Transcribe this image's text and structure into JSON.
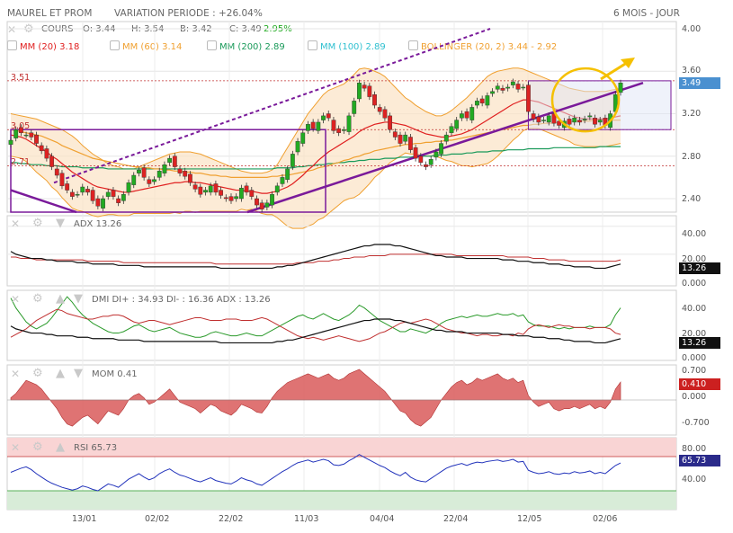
{
  "header": {
    "instrument": "MAUREL ET PROM",
    "variation": "VARIATION PERIODE : +26.04%",
    "period": "6 MOIS - JOUR",
    "cours_label": "COURS",
    "open": "O: 3.44",
    "high": "H: 3.54",
    "bid": "B: 3.42",
    "close": "C: 3.49",
    "change": "2.95%"
  },
  "legend": {
    "mm20": "MM (20)  3.18",
    "mm60": "MM (60)  3.14",
    "mm200": "MM (200)  2.89",
    "mm100": "MM (100)  2.89",
    "bollinger": "BOLLINGER (20, 2)  3.44 - 2.92"
  },
  "colors": {
    "up": "#22aa22",
    "down": "#dd2222",
    "mm20": "#e02020",
    "mm60": "#f0a030",
    "mm200": "#1a9a5a",
    "mm100": "#30c0d0",
    "bollinger": "#f0a030",
    "trend": "#7a1a9a",
    "highlight": "#f5c000",
    "price_tag": "#4a90d0",
    "ind_tag": "#111111",
    "mom_tag": "#cc2020",
    "rsi_tag": "#2a2a8a"
  },
  "price_levels": {
    "l351": "3.51",
    "l305": "3.05",
    "l271": "2.71"
  },
  "price_axis": [
    "4.00",
    "3.60",
    "3.20",
    "2.80",
    "2.40"
  ],
  "price_tag": "3.49",
  "x_dates": [
    "13/01",
    "02/02",
    "22/02",
    "11/03",
    "04/04",
    "22/04",
    "12/05",
    "02/06"
  ],
  "adx_panel": {
    "title": "ADX  13.26",
    "axis": [
      "40.00",
      "20.00",
      "0.000"
    ],
    "tag": "13.26"
  },
  "dmi_panel": {
    "title": "DMI  DI+ : 34.93  DI- : 16.36  ADX : 13.26",
    "axis": [
      "40.00",
      "20.00",
      "0.000"
    ],
    "tag": "13.26"
  },
  "mom_panel": {
    "title": "MOM  0.41",
    "axis": [
      "0.700",
      "0.000",
      "-0.700"
    ],
    "tag": "0.410"
  },
  "rsi_panel": {
    "title": "RSI  65.73",
    "axis": [
      "80.00",
      "40.00"
    ],
    "tag": "65.73"
  },
  "chart_data": {
    "type": "candlestick",
    "title": "MAUREL ET PROM",
    "period": "6 MOIS - JOUR",
    "ylim": [
      2.25,
      4.05
    ],
    "closes": [
      2.95,
      3.05,
      3.02,
      3.0,
      2.98,
      2.92,
      2.85,
      2.78,
      2.7,
      2.62,
      2.52,
      2.48,
      2.42,
      2.44,
      2.51,
      2.46,
      2.38,
      2.33,
      2.4,
      2.46,
      2.42,
      2.36,
      2.44,
      2.55,
      2.62,
      2.67,
      2.6,
      2.54,
      2.58,
      2.66,
      2.72,
      2.78,
      2.7,
      2.64,
      2.61,
      2.55,
      2.49,
      2.44,
      2.48,
      2.52,
      2.46,
      2.43,
      2.4,
      2.38,
      2.42,
      2.5,
      2.46,
      2.42,
      2.34,
      2.3,
      2.36,
      2.44,
      2.52,
      2.6,
      2.68,
      2.82,
      2.94,
      3.02,
      3.1,
      3.06,
      3.12,
      3.18,
      3.16,
      3.04,
      3.02,
      3.05,
      3.18,
      3.32,
      3.49,
      3.44,
      3.36,
      3.28,
      3.22,
      3.16,
      3.05,
      2.98,
      2.92,
      3.0,
      2.86,
      2.78,
      2.74,
      2.7,
      2.77,
      2.84,
      2.92,
      3.0,
      3.08,
      3.14,
      3.2,
      3.16,
      3.26,
      3.32,
      3.3,
      3.37,
      3.41,
      3.46,
      3.42,
      3.45,
      3.5,
      3.43,
      3.45,
      3.22,
      3.15,
      3.12,
      3.14,
      3.18,
      3.11,
      3.09,
      3.13,
      3.1,
      3.16,
      3.12,
      3.15,
      3.18,
      3.1,
      3.14,
      3.09,
      3.2,
      3.38,
      3.49
    ],
    "mm20": [
      3.0,
      2.99,
      2.98,
      2.96,
      2.93,
      2.9,
      2.87,
      2.84,
      2.8,
      2.77,
      2.73,
      2.69,
      2.65,
      2.62,
      2.59,
      2.56,
      2.53,
      2.51,
      2.5,
      2.49,
      2.48,
      2.47,
      2.46,
      2.46,
      2.47,
      2.48,
      2.49,
      2.5,
      2.51,
      2.52,
      2.53,
      2.54,
      2.55,
      2.55,
      2.56,
      2.56,
      2.55,
      2.55,
      2.54,
      2.53,
      2.52,
      2.51,
      2.5,
      2.49,
      2.48,
      2.48,
      2.47,
      2.47,
      2.46,
      2.45,
      2.45,
      2.46,
      2.47,
      2.49,
      2.51,
      2.54,
      2.58,
      2.62,
      2.67,
      2.71,
      2.76,
      2.8,
      2.84,
      2.87,
      2.9,
      2.93,
      2.96,
      2.99,
      3.03,
      3.06,
      3.08,
      3.1,
      3.11,
      3.12,
      3.12,
      3.11,
      3.1,
      3.09,
      3.07,
      3.05,
      3.03,
      3.01,
      3.0,
      2.99,
      2.98,
      2.98,
      2.99,
      3.0,
      3.01,
      3.03,
      3.05,
      3.08,
      3.11,
      3.14,
      3.17,
      3.2,
      3.23,
      3.26,
      3.29,
      3.31,
      3.33,
      3.33,
      3.32,
      3.31,
      3.29,
      3.27,
      3.25,
      3.23,
      3.21,
      3.19,
      3.17,
      3.16,
      3.15,
      3.15,
      3.15,
      3.15,
      3.15,
      3.16,
      3.17,
      3.18
    ],
    "mm60": [
      3.05,
      3.04,
      3.03,
      3.02,
      3.01,
      3.0,
      2.99,
      2.97,
      2.95,
      2.93,
      2.9,
      2.88,
      2.86,
      2.84,
      2.82,
      2.8,
      2.78,
      2.77,
      2.76,
      2.75,
      2.74,
      2.73,
      2.72,
      2.71,
      2.7,
      2.7,
      2.69,
      2.69,
      2.68,
      2.68,
      2.67,
      2.67,
      2.66,
      2.66,
      2.65,
      2.65,
      2.64,
      2.64,
      2.63,
      2.62,
      2.62,
      2.61,
      2.61,
      2.6,
      2.6,
      2.6,
      2.6,
      2.6,
      2.6,
      2.6,
      2.6,
      2.61,
      2.61,
      2.62,
      2.62,
      2.63,
      2.64,
      2.65,
      2.66,
      2.67,
      2.69,
      2.7,
      2.71,
      2.73,
      2.74,
      2.76,
      2.77,
      2.79,
      2.8,
      2.82,
      2.83,
      2.85,
      2.86,
      2.87,
      2.88,
      2.89,
      2.9,
      2.91,
      2.91,
      2.92,
      2.92,
      2.93,
      2.93,
      2.94,
      2.94,
      2.95,
      2.95,
      2.96,
      2.97,
      2.98,
      2.99,
      3.0,
      3.01,
      3.02,
      3.03,
      3.04,
      3.05,
      3.06,
      3.07,
      3.08,
      3.09,
      3.09,
      3.1,
      3.1,
      3.11,
      3.11,
      3.11,
      3.12,
      3.12,
      3.12,
      3.13,
      3.13,
      3.13,
      3.13,
      3.14,
      3.14,
      3.14,
      3.14,
      3.14,
      3.14
    ],
    "mm200": [
      2.74,
      2.74,
      2.73,
      2.73,
      2.72,
      2.72,
      2.72,
      2.71,
      2.71,
      2.71,
      2.7,
      2.7,
      2.7,
      2.7,
      2.69,
      2.69,
      2.69,
      2.69,
      2.69,
      2.68,
      2.68,
      2.68,
      2.68,
      2.68,
      2.68,
      2.68,
      2.68,
      2.68,
      2.68,
      2.68,
      2.68,
      2.68,
      2.68,
      2.68,
      2.68,
      2.68,
      2.68,
      2.68,
      2.68,
      2.68,
      2.68,
      2.68,
      2.68,
      2.68,
      2.68,
      2.68,
      2.68,
      2.68,
      2.68,
      2.68,
      2.68,
      2.68,
      2.69,
      2.69,
      2.69,
      2.69,
      2.7,
      2.7,
      2.71,
      2.71,
      2.72,
      2.72,
      2.73,
      2.73,
      2.74,
      2.74,
      2.75,
      2.75,
      2.76,
      2.76,
      2.77,
      2.77,
      2.77,
      2.78,
      2.78,
      2.78,
      2.79,
      2.79,
      2.79,
      2.8,
      2.8,
      2.8,
      2.8,
      2.81,
      2.81,
      2.81,
      2.82,
      2.82,
      2.82,
      2.83,
      2.83,
      2.84,
      2.84,
      2.84,
      2.85,
      2.85,
      2.85,
      2.86,
      2.86,
      2.86,
      2.86,
      2.87,
      2.87,
      2.87,
      2.87,
      2.87,
      2.88,
      2.88,
      2.88,
      2.88,
      2.88,
      2.88,
      2.88,
      2.88,
      2.88,
      2.89,
      2.89,
      2.89,
      2.89,
      2.89
    ],
    "boll_upper": [
      3.2,
      3.19,
      3.18,
      3.17,
      3.16,
      3.15,
      3.13,
      3.11,
      3.09,
      3.07,
      3.05,
      3.02,
      2.99,
      2.95,
      2.9,
      2.86,
      2.82,
      2.79,
      2.76,
      2.73,
      2.71,
      2.7,
      2.68,
      2.68,
      2.68,
      2.7,
      2.72,
      2.74,
      2.76,
      2.78,
      2.8,
      2.82,
      2.83,
      2.84,
      2.84,
      2.84,
      2.83,
      2.82,
      2.8,
      2.78,
      2.76,
      2.74,
      2.72,
      2.7,
      2.68,
      2.66,
      2.65,
      2.64,
      2.64,
      2.64,
      2.65,
      2.67,
      2.72,
      2.8,
      2.88,
      2.96,
      3.04,
      3.12,
      3.2,
      3.26,
      3.32,
      3.38,
      3.42,
      3.44,
      3.46,
      3.48,
      3.52,
      3.57,
      3.62,
      3.63,
      3.62,
      3.6,
      3.58,
      3.55,
      3.5,
      3.45,
      3.4,
      3.35,
      3.32,
      3.28,
      3.25,
      3.22,
      3.2,
      3.18,
      3.18,
      3.2,
      3.23,
      3.27,
      3.31,
      3.35,
      3.4,
      3.45,
      3.5,
      3.55,
      3.58,
      3.6,
      3.61,
      3.62,
      3.63,
      3.63,
      3.62,
      3.6,
      3.58,
      3.56,
      3.54,
      3.52,
      3.5,
      3.48,
      3.46,
      3.44,
      3.43,
      3.42,
      3.41,
      3.41,
      3.41,
      3.41,
      3.41,
      3.42,
      3.43,
      3.44
    ],
    "boll_lower": [
      2.8,
      2.79,
      2.78,
      2.75,
      2.7,
      2.65,
      2.61,
      2.57,
      2.51,
      2.47,
      2.41,
      2.36,
      2.31,
      2.29,
      2.28,
      2.26,
      2.24,
      2.23,
      2.24,
      2.25,
      2.25,
      2.24,
      2.24,
      2.24,
      2.26,
      2.26,
      2.26,
      2.26,
      2.26,
      2.26,
      2.26,
      2.26,
      2.27,
      2.26,
      2.28,
      2.28,
      2.27,
      2.28,
      2.28,
      2.28,
      2.28,
      2.28,
      2.28,
      2.28,
      2.28,
      2.3,
      2.29,
      2.3,
      2.28,
      2.26,
      2.25,
      2.25,
      2.22,
      2.18,
      2.14,
      2.12,
      2.12,
      2.12,
      2.14,
      2.16,
      2.2,
      2.22,
      2.26,
      2.3,
      2.34,
      2.38,
      2.4,
      2.41,
      2.44,
      2.49,
      2.54,
      2.6,
      2.64,
      2.69,
      2.74,
      2.77,
      2.8,
      2.83,
      2.82,
      2.82,
      2.81,
      2.8,
      2.8,
      2.8,
      2.78,
      2.76,
      2.75,
      2.73,
      2.71,
      2.71,
      2.7,
      2.71,
      2.72,
      2.73,
      2.76,
      2.8,
      2.85,
      2.9,
      2.95,
      2.99,
      3.04,
      3.06,
      3.06,
      3.06,
      3.04,
      3.02,
      3.0,
      2.98,
      2.96,
      2.94,
      2.91,
      2.9,
      2.89,
      2.89,
      2.89,
      2.89,
      2.89,
      2.9,
      2.91,
      2.92
    ],
    "adx": [
      22,
      20,
      19,
      18,
      17,
      17,
      17,
      16,
      16,
      15,
      15,
      15,
      15,
      14,
      14,
      14,
      13,
      13,
      13,
      13,
      13,
      12,
      12,
      12,
      12,
      12,
      11,
      11,
      11,
      11,
      11,
      11,
      11,
      11,
      11,
      11,
      11,
      11,
      11,
      11,
      11,
      10,
      10,
      10,
      10,
      10,
      10,
      10,
      10,
      10,
      10,
      10,
      11,
      11,
      12,
      12,
      13,
      14,
      15,
      16,
      17,
      18,
      19,
      20,
      21,
      22,
      23,
      24,
      25,
      26,
      26,
      27,
      27,
      27,
      27,
      26,
      26,
      25,
      24,
      23,
      22,
      21,
      20,
      19,
      19,
      18,
      18,
      18,
      18,
      17,
      17,
      17,
      17,
      17,
      17,
      17,
      16,
      16,
      16,
      15,
      15,
      15,
      14,
      14,
      14,
      13,
      13,
      13,
      12,
      12,
      11,
      11,
      11,
      11,
      10,
      10,
      10,
      11,
      12,
      13
    ],
    "adxr": [
      18,
      18,
      17,
      17,
      17,
      16,
      16,
      16,
      16,
      16,
      16,
      16,
      16,
      16,
      16,
      15,
      15,
      15,
      15,
      15,
      15,
      15,
      14,
      14,
      14,
      14,
      14,
      14,
      14,
      14,
      14,
      14,
      14,
      14,
      14,
      14,
      14,
      14,
      14,
      14,
      13,
      13,
      13,
      13,
      13,
      13,
      13,
      13,
      13,
      13,
      13,
      13,
      13,
      13,
      13,
      13,
      14,
      14,
      14,
      14,
      15,
      15,
      15,
      16,
      16,
      17,
      17,
      18,
      18,
      18,
      19,
      19,
      19,
      19,
      20,
      20,
      20,
      20,
      20,
      20,
      20,
      20,
      20,
      20,
      20,
      20,
      20,
      19,
      19,
      19,
      19,
      19,
      19,
      19,
      19,
      19,
      19,
      18,
      18,
      18,
      18,
      18,
      17,
      17,
      17,
      16,
      16,
      16,
      16,
      15,
      15,
      15,
      15,
      15,
      15,
      15,
      15,
      15,
      15,
      16
    ],
    "di_plus": [
      42,
      35,
      30,
      25,
      22,
      20,
      22,
      24,
      28,
      33,
      38,
      43,
      39,
      34,
      30,
      27,
      24,
      22,
      20,
      18,
      17,
      17,
      18,
      20,
      22,
      23,
      21,
      19,
      18,
      19,
      20,
      21,
      19,
      17,
      16,
      15,
      14,
      14,
      15,
      17,
      18,
      17,
      16,
      15,
      15,
      16,
      17,
      16,
      15,
      15,
      17,
      19,
      21,
      23,
      25,
      27,
      29,
      30,
      28,
      27,
      29,
      31,
      29,
      27,
      26,
      28,
      30,
      33,
      37,
      35,
      32,
      29,
      26,
      24,
      22,
      20,
      18,
      18,
      20,
      19,
      18,
      17,
      19,
      21,
      24,
      26,
      27,
      28,
      29,
      28,
      29,
      30,
      29,
      29,
      30,
      31,
      30,
      30,
      31,
      29,
      30,
      25,
      23,
      22,
      22,
      22,
      21,
      20,
      21,
      20,
      21,
      21,
      21,
      22,
      21,
      21,
      21,
      23,
      30,
      35
    ],
    "di_minus": [
      14,
      16,
      18,
      20,
      23,
      26,
      28,
      30,
      32,
      34,
      33,
      31,
      30,
      29,
      28,
      27,
      27,
      28,
      29,
      29,
      30,
      30,
      29,
      27,
      25,
      24,
      25,
      26,
      26,
      25,
      24,
      23,
      24,
      25,
      26,
      27,
      28,
      28,
      27,
      26,
      26,
      26,
      27,
      27,
      27,
      26,
      26,
      26,
      27,
      28,
      27,
      25,
      23,
      21,
      19,
      17,
      15,
      14,
      13,
      14,
      13,
      12,
      13,
      14,
      15,
      14,
      13,
      12,
      11,
      12,
      13,
      15,
      17,
      18,
      20,
      22,
      24,
      25,
      24,
      25,
      26,
      27,
      26,
      24,
      22,
      20,
      19,
      18,
      17,
      17,
      16,
      15,
      16,
      16,
      15,
      15,
      16,
      16,
      15,
      17,
      16,
      20,
      22,
      23,
      22,
      21,
      22,
      23,
      22,
      22,
      21,
      21,
      21,
      20,
      21,
      21,
      21,
      20,
      17,
      16
    ],
    "mom": [
      0.05,
      0.15,
      0.3,
      0.45,
      0.4,
      0.35,
      0.25,
      0.1,
      -0.05,
      -0.2,
      -0.4,
      -0.55,
      -0.6,
      -0.5,
      -0.4,
      -0.35,
      -0.45,
      -0.55,
      -0.4,
      -0.25,
      -0.3,
      -0.35,
      -0.2,
      0.0,
      0.1,
      0.15,
      0.05,
      -0.1,
      -0.05,
      0.05,
      0.15,
      0.25,
      0.1,
      -0.05,
      -0.1,
      -0.15,
      -0.2,
      -0.3,
      -0.2,
      -0.1,
      -0.15,
      -0.25,
      -0.3,
      -0.35,
      -0.25,
      -0.1,
      -0.15,
      -0.2,
      -0.28,
      -0.3,
      -0.15,
      0.05,
      0.2,
      0.3,
      0.4,
      0.45,
      0.5,
      0.55,
      0.6,
      0.55,
      0.5,
      0.55,
      0.6,
      0.5,
      0.45,
      0.5,
      0.6,
      0.65,
      0.7,
      0.6,
      0.5,
      0.4,
      0.3,
      0.2,
      0.05,
      -0.1,
      -0.25,
      -0.3,
      -0.45,
      -0.55,
      -0.6,
      -0.5,
      -0.4,
      -0.2,
      0.0,
      0.15,
      0.3,
      0.4,
      0.45,
      0.35,
      0.4,
      0.5,
      0.45,
      0.5,
      0.55,
      0.6,
      0.5,
      0.45,
      0.5,
      0.4,
      0.45,
      0.1,
      -0.05,
      -0.15,
      -0.1,
      -0.05,
      -0.2,
      -0.25,
      -0.2,
      -0.2,
      -0.15,
      -0.2,
      -0.15,
      -0.1,
      -0.2,
      -0.15,
      -0.2,
      -0.05,
      0.25,
      0.41
    ],
    "rsi": [
      52,
      55,
      58,
      60,
      56,
      50,
      45,
      40,
      36,
      33,
      30,
      28,
      26,
      28,
      32,
      30,
      27,
      25,
      30,
      35,
      33,
      30,
      36,
      42,
      46,
      50,
      45,
      41,
      44,
      50,
      54,
      57,
      52,
      48,
      46,
      43,
      40,
      38,
      41,
      44,
      40,
      38,
      36,
      35,
      39,
      44,
      41,
      39,
      35,
      33,
      38,
      43,
      48,
      53,
      57,
      62,
      66,
      68,
      70,
      67,
      69,
      71,
      69,
      63,
      62,
      64,
      69,
      73,
      78,
      74,
      70,
      66,
      62,
      59,
      54,
      50,
      47,
      52,
      45,
      41,
      39,
      38,
      43,
      48,
      53,
      58,
      61,
      63,
      65,
      62,
      65,
      67,
      66,
      68,
      69,
      70,
      68,
      69,
      71,
      67,
      68,
      55,
      52,
      50,
      51,
      53,
      50,
      49,
      51,
      50,
      53,
      51,
      52,
      54,
      50,
      52,
      50,
      56,
      62,
      65.73
    ],
    "x_dates": [
      "13/01",
      "02/02",
      "22/02",
      "11/03",
      "04/04",
      "22/04",
      "12/05",
      "02/06"
    ],
    "series_shown": [
      "COURS",
      "MM (20)",
      "MM (60)",
      "MM (200)",
      "MM (100)",
      "BOLLINGER (20, 2)"
    ]
  }
}
